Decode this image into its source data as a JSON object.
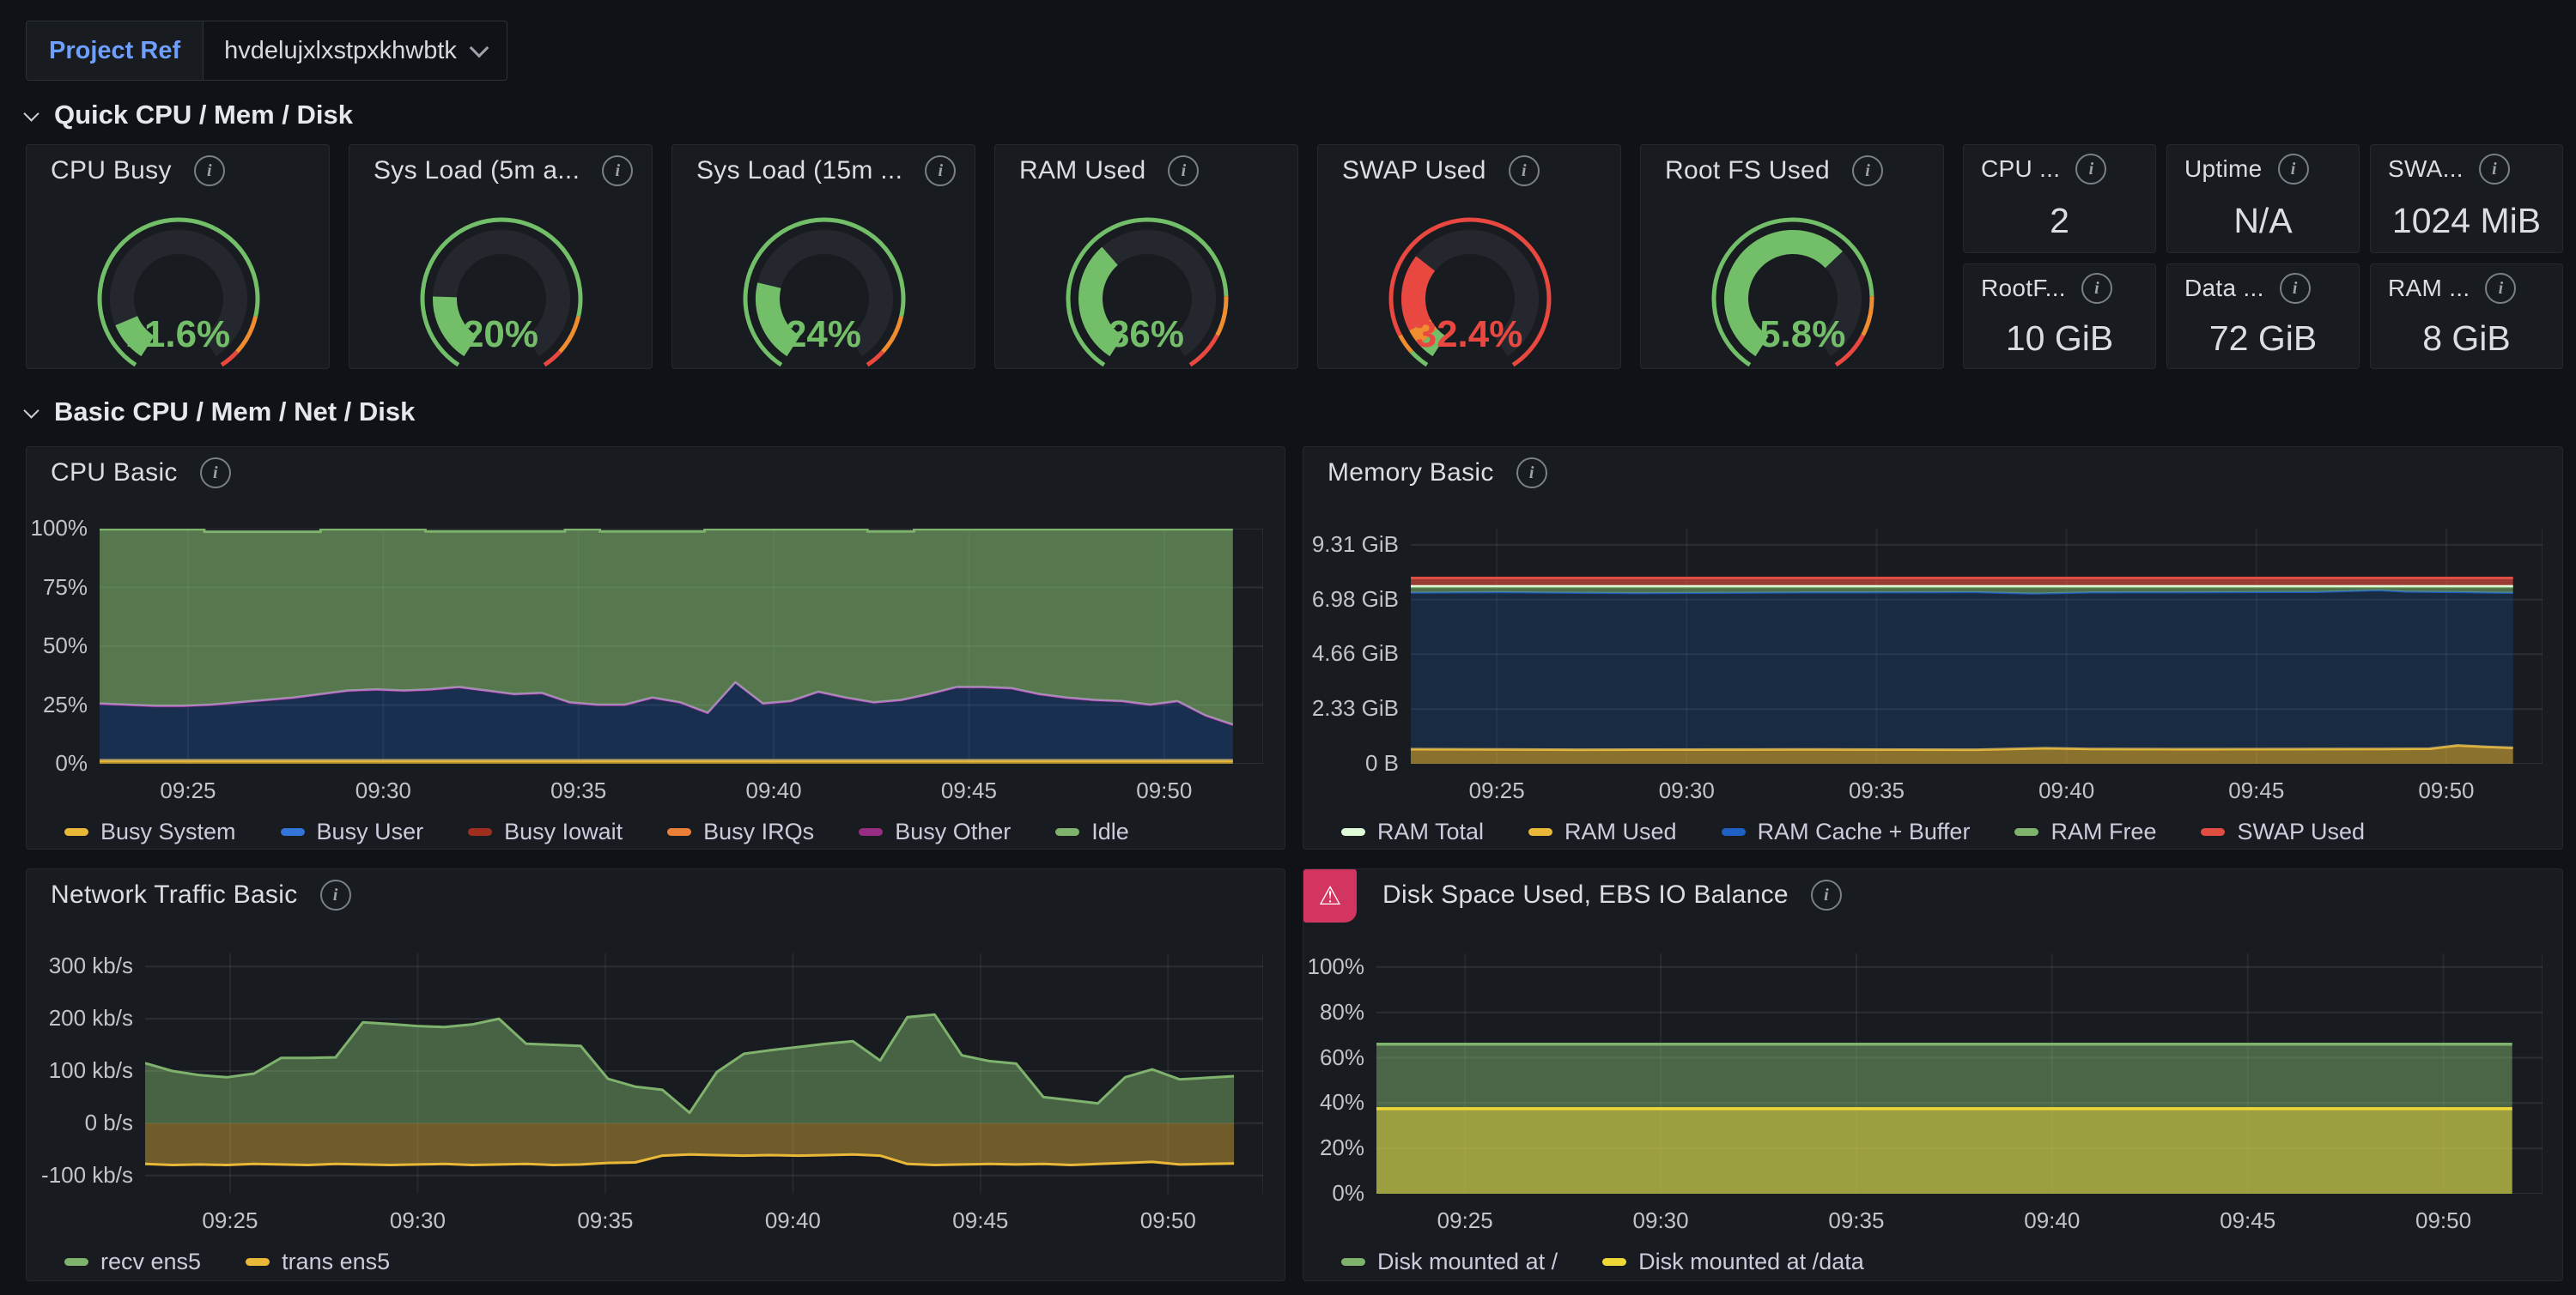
{
  "header": {
    "variable_label": "Project Ref",
    "variable_value": "hvdelujxlxstpxkhwbtk"
  },
  "sections": [
    {
      "title": "Quick CPU / Mem / Disk"
    },
    {
      "title": "Basic CPU / Mem / Net / Disk"
    }
  ],
  "gauges": [
    {
      "title": "CPU Busy",
      "value": "11.6%",
      "percent": 11.6,
      "value_color": "#73BF69",
      "thresholds": [
        {
          "to": 85,
          "color": "#73BF69"
        },
        {
          "to": 95,
          "color": "#EF8D30"
        },
        {
          "to": 100,
          "color": "#E8483F"
        }
      ]
    },
    {
      "title": "Sys Load (5m a...",
      "value": "20%",
      "percent": 20,
      "value_color": "#73BF69",
      "thresholds": [
        {
          "to": 85,
          "color": "#73BF69"
        },
        {
          "to": 95,
          "color": "#EF8D30"
        },
        {
          "to": 100,
          "color": "#E8483F"
        }
      ]
    },
    {
      "title": "Sys Load (15m ...",
      "value": "24%",
      "percent": 24,
      "value_color": "#73BF69",
      "thresholds": [
        {
          "to": 85,
          "color": "#73BF69"
        },
        {
          "to": 95,
          "color": "#EF8D30"
        },
        {
          "to": 100,
          "color": "#E8483F"
        }
      ]
    },
    {
      "title": "RAM Used",
      "value": "36%",
      "percent": 36,
      "value_color": "#73BF69",
      "thresholds": [
        {
          "to": 80,
          "color": "#73BF69"
        },
        {
          "to": 90,
          "color": "#EF8D30"
        },
        {
          "to": 100,
          "color": "#E8483F"
        }
      ]
    },
    {
      "title": "SWAP Used",
      "value": "32.4%",
      "percent": 32.4,
      "value_color": "#E8483F",
      "thresholds": [
        {
          "to": 5,
          "color": "#73BF69"
        },
        {
          "to": 10,
          "color": "#EF8D30"
        },
        {
          "to": 100,
          "color": "#E8483F"
        }
      ]
    },
    {
      "title": "Root FS Used",
      "value": "65.8%",
      "percent": 65.8,
      "value_color": "#73BF69",
      "thresholds": [
        {
          "to": 80,
          "color": "#73BF69"
        },
        {
          "to": 90,
          "color": "#EF8D30"
        },
        {
          "to": 100,
          "color": "#E8483F"
        }
      ]
    }
  ],
  "stats": [
    {
      "title": "CPU ...",
      "value": "2"
    },
    {
      "title": "Uptime",
      "value": "N/A"
    },
    {
      "title": "SWA...",
      "value": "1024 MiB"
    },
    {
      "title": "RootF...",
      "value": "10 GiB"
    },
    {
      "title": "Data ...",
      "value": "72 GiB"
    },
    {
      "title": "RAM ...",
      "value": "8 GiB"
    }
  ],
  "chart_data": [
    {
      "type": "area",
      "title": "CPU Basic",
      "ylim": [
        0,
        100
      ],
      "grid_extra": [
        1.0
      ],
      "yticks": [
        {
          "v": 0,
          "label": "0%"
        },
        {
          "v": 25,
          "label": "25%"
        },
        {
          "v": 50,
          "label": "50%"
        },
        {
          "v": 75,
          "label": "75%"
        },
        {
          "v": 100,
          "label": "100%"
        }
      ],
      "xticks": [
        {
          "f": 0.076,
          "label": "09:25"
        },
        {
          "f": 0.2438,
          "label": "09:30"
        },
        {
          "f": 0.4116,
          "label": "09:35"
        },
        {
          "f": 0.5794,
          "label": "09:40"
        },
        {
          "f": 0.7472,
          "label": "09:45"
        },
        {
          "f": 0.915,
          "label": "09:50"
        }
      ],
      "bands": [
        {
          "name": "Busy System",
          "color": "#EAB839",
          "width": 4,
          "fill": "rgba(234,184,57,0.65)",
          "base": 0,
          "values": [
            1.3,
            1.3
          ],
          "span": [
            0,
            0.974
          ]
        },
        {
          "name": "Busy User",
          "color": "rgba(50,116,217,0)",
          "width": 0,
          "fill": "rgba(31,96,196,0.30)",
          "base": "prev",
          "values": [
            25,
            24.5,
            24,
            24,
            24.5,
            25.5,
            26.5,
            27.5,
            29,
            30.5,
            31,
            30.5,
            31,
            32,
            30.5,
            29,
            29.5,
            25.5,
            24.5,
            24.5,
            27.5,
            25.5,
            21,
            34,
            25,
            26,
            30,
            27.5,
            25.5,
            26.5,
            29,
            32,
            32,
            31.5,
            29,
            27.5,
            26.5,
            26,
            24.5,
            26,
            20,
            16
          ],
          "span": [
            0,
            0.974
          ]
        },
        {
          "name": "Busy Other",
          "color": "#B877D9",
          "width": 2.5,
          "fill": "rgba(150,45,130,0.8)",
          "base": "prev",
          "values": [
            25.7,
            25.2,
            24.7,
            24.7,
            25.2,
            26.2,
            27.2,
            28.2,
            29.7,
            31.2,
            31.7,
            31.2,
            31.7,
            32.7,
            31.2,
            29.7,
            30.2,
            26.2,
            25.2,
            25.2,
            28.2,
            26.2,
            21.7,
            34.7,
            25.7,
            26.7,
            30.7,
            28.2,
            26.2,
            27.2,
            29.7,
            32.7,
            32.7,
            32.2,
            29.7,
            28.2,
            27.2,
            26.7,
            25.2,
            26.7,
            20.7,
            16.7
          ],
          "span": [
            0,
            0.974
          ]
        },
        {
          "name": "Idle",
          "color": "#7EB26D",
          "width": 3,
          "fill": "rgba(126,178,109,0.62)",
          "base": "prev",
          "points": [
            [
              0,
              99.7
            ],
            [
              0.09,
              99.7
            ],
            [
              0.09,
              98.7
            ],
            [
              0.19,
              98.7
            ],
            [
              0.19,
              99.7
            ],
            [
              0.28,
              99.7
            ],
            [
              0.28,
              98.8
            ],
            [
              0.4,
              98.8
            ],
            [
              0.4,
              99.7
            ],
            [
              0.43,
              99.7
            ],
            [
              0.43,
              98.8
            ],
            [
              0.52,
              98.8
            ],
            [
              0.52,
              99.7
            ],
            [
              0.66,
              99.7
            ],
            [
              0.66,
              98.8
            ],
            [
              0.7,
              98.8
            ],
            [
              0.7,
              99.7
            ],
            [
              0.974,
              99.7
            ]
          ]
        }
      ],
      "legend": [
        {
          "label": "Busy System",
          "color": "#EAB839"
        },
        {
          "label": "Busy User",
          "color": "#3274D9"
        },
        {
          "label": "Busy Iowait",
          "color": "#9E2F1E"
        },
        {
          "label": "Busy IRQs",
          "color": "#EA8038"
        },
        {
          "label": "Busy Other",
          "color": "#962D82"
        },
        {
          "label": "Idle",
          "color": "#7EB26D"
        }
      ]
    },
    {
      "type": "area",
      "title": "Memory Basic",
      "ylim": [
        0,
        10
      ],
      "grid_extra": [
        1.0
      ],
      "yticks": [
        {
          "v": 0,
          "label": "0 B"
        },
        {
          "v": 2.33,
          "label": "2.33 GiB"
        },
        {
          "v": 4.66,
          "label": "4.66 GiB"
        },
        {
          "v": 6.98,
          "label": "6.98 GiB"
        },
        {
          "v": 9.31,
          "label": "9.31 GiB"
        }
      ],
      "xticks": [
        {
          "f": 0.076,
          "label": "09:25"
        },
        {
          "f": 0.2438,
          "label": "09:30"
        },
        {
          "f": 0.4116,
          "label": "09:35"
        },
        {
          "f": 0.5794,
          "label": "09:40"
        },
        {
          "f": 0.7472,
          "label": "09:45"
        },
        {
          "f": 0.915,
          "label": "09:50"
        }
      ],
      "bands": [
        {
          "name": "RAM Used",
          "color": "#EAB839",
          "width": 3,
          "fill": "rgba(234,184,57,0.55)",
          "base": 0,
          "points": [
            [
              0,
              0.62
            ],
            [
              0.15,
              0.6
            ],
            [
              0.35,
              0.61
            ],
            [
              0.5,
              0.6
            ],
            [
              0.56,
              0.66
            ],
            [
              0.6,
              0.63
            ],
            [
              0.7,
              0.62
            ],
            [
              0.86,
              0.63
            ],
            [
              0.9,
              0.64
            ],
            [
              0.925,
              0.78
            ],
            [
              0.95,
              0.72
            ],
            [
              0.974,
              0.68
            ]
          ]
        },
        {
          "name": "RAM Cache + Buffer",
          "color": "rgba(31,96,196,0.9)",
          "width": 2.5,
          "fill": "rgba(31,96,196,0.22)",
          "base": "prev",
          "points": [
            [
              0,
              7.28
            ],
            [
              0.08,
              7.3
            ],
            [
              0.2,
              7.26
            ],
            [
              0.35,
              7.29
            ],
            [
              0.5,
              7.3
            ],
            [
              0.55,
              7.24
            ],
            [
              0.6,
              7.29
            ],
            [
              0.72,
              7.3
            ],
            [
              0.8,
              7.31
            ],
            [
              0.855,
              7.38
            ],
            [
              0.88,
              7.32
            ],
            [
              0.93,
              7.3
            ],
            [
              0.974,
              7.27
            ]
          ]
        },
        {
          "name": "RAM Free",
          "color": "#7EB26D",
          "width": 2.5,
          "fill": "rgba(126,178,109,0.55)",
          "base": "prev",
          "points": [
            [
              0,
              7.52
            ],
            [
              0.5,
              7.52
            ],
            [
              0.974,
              7.52
            ]
          ]
        },
        {
          "name": "RAM Total",
          "color": "#E0F9D7",
          "width": 2.5,
          "fill": null,
          "base": null,
          "points": [
            [
              0,
              7.56
            ],
            [
              0.974,
              7.56
            ]
          ]
        },
        {
          "name": "SWAP Used",
          "color": "#E24D42",
          "width": 3,
          "fill": "rgba(226,77,66,0.65)",
          "base": 7.6,
          "points": [
            [
              0,
              7.9
            ],
            [
              0.974,
              7.9
            ]
          ]
        }
      ],
      "legend": [
        {
          "label": "RAM Total",
          "color": "#E0F9D7"
        },
        {
          "label": "RAM Used",
          "color": "#EAB839"
        },
        {
          "label": "RAM Cache + Buffer",
          "color": "#1F60C4"
        },
        {
          "label": "RAM Free",
          "color": "#7EB26D"
        },
        {
          "label": "SWAP Used",
          "color": "#E24D42"
        }
      ]
    },
    {
      "type": "area",
      "title": "Network Traffic Basic",
      "ylim": [
        -135,
        325
      ],
      "grid_extra": [
        1.0
      ],
      "yticks": [
        {
          "v": -100,
          "label": "-100 kb/s"
        },
        {
          "v": 0,
          "label": "0 b/s"
        },
        {
          "v": 100,
          "label": "100 kb/s"
        },
        {
          "v": 200,
          "label": "200 kb/s"
        },
        {
          "v": 300,
          "label": "300 kb/s"
        }
      ],
      "xticks": [
        {
          "f": 0.076,
          "label": "09:25"
        },
        {
          "f": 0.2438,
          "label": "09:30"
        },
        {
          "f": 0.4116,
          "label": "09:35"
        },
        {
          "f": 0.5794,
          "label": "09:40"
        },
        {
          "f": 0.7472,
          "label": "09:45"
        },
        {
          "f": 0.915,
          "label": "09:50"
        }
      ],
      "bands": [
        {
          "name": "recv ens5",
          "color": "#7EB26D",
          "width": 3,
          "fill": "rgba(126,178,109,0.48)",
          "base": 0,
          "values": [
            115,
            100,
            92,
            88,
            95,
            125,
            125,
            126,
            193,
            190,
            186,
            184,
            189,
            200,
            152,
            150,
            148,
            85,
            70,
            64,
            20,
            98,
            133,
            140,
            146,
            152,
            157,
            120,
            203,
            208,
            130,
            119,
            114,
            50,
            44,
            38,
            88,
            103,
            84,
            87,
            90
          ],
          "span": [
            0,
            0.974
          ]
        },
        {
          "name": "trans ens5",
          "color": "#EAB839",
          "width": 3,
          "fill": "rgba(234,184,57,0.42)",
          "base": 0,
          "values": [
            -78,
            -80,
            -79,
            -80,
            -78,
            -79,
            -80,
            -78,
            -79,
            -80,
            -79,
            -78,
            -80,
            -79,
            -78,
            -80,
            -79,
            -76,
            -75,
            -62,
            -60,
            -61,
            -62,
            -61,
            -62,
            -61,
            -60,
            -62,
            -78,
            -80,
            -79,
            -78,
            -79,
            -78,
            -80,
            -78,
            -76,
            -74,
            -79,
            -78,
            -77
          ],
          "span": [
            0,
            0.974
          ]
        }
      ],
      "legend": [
        {
          "label": "recv ens5",
          "color": "#7EB26D"
        },
        {
          "label": "trans ens5",
          "color": "#EAB839"
        }
      ]
    },
    {
      "type": "area",
      "title": "Disk Space Used, EBS IO Balance",
      "ylim": [
        0,
        106
      ],
      "grid_extra": [
        1.0
      ],
      "yticks": [
        {
          "v": 0,
          "label": "0%"
        },
        {
          "v": 20,
          "label": "20%"
        },
        {
          "v": 40,
          "label": "40%"
        },
        {
          "v": 60,
          "label": "60%"
        },
        {
          "v": 80,
          "label": "80%"
        },
        {
          "v": 100,
          "label": "100%"
        }
      ],
      "xticks": [
        {
          "f": 0.076,
          "label": "09:25"
        },
        {
          "f": 0.2438,
          "label": "09:30"
        },
        {
          "f": 0.4116,
          "label": "09:35"
        },
        {
          "f": 0.5794,
          "label": "09:40"
        },
        {
          "f": 0.7472,
          "label": "09:45"
        },
        {
          "f": 0.915,
          "label": "09:50"
        }
      ],
      "bands": [
        {
          "name": "Disk mounted at /",
          "color": "#7EB26D",
          "width": 3.5,
          "fill": "rgba(126,178,109,0.50)",
          "base": 0,
          "points": [
            [
              0,
              66
            ],
            [
              0.974,
              66
            ]
          ]
        },
        {
          "name": "Disk mounted at /data",
          "color": "#EED838",
          "width": 3.5,
          "fill": "rgba(238,216,56,0.50)",
          "base": 0,
          "points": [
            [
              0,
              37.5
            ],
            [
              0.974,
              37.5
            ]
          ]
        }
      ],
      "legend": [
        {
          "label": "Disk mounted at /",
          "color": "#7EB26D"
        },
        {
          "label": "Disk mounted at /data",
          "color": "#EED838"
        }
      ]
    }
  ]
}
